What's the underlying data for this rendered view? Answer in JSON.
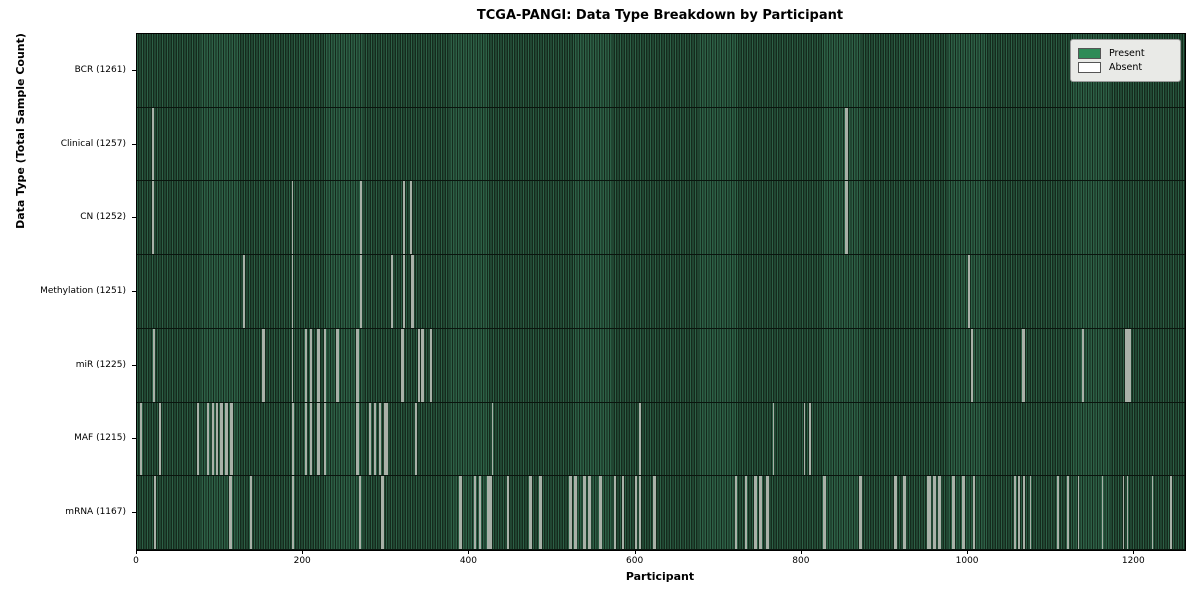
{
  "title": "TCGA-PANGI: Data Type Breakdown by Participant",
  "xlabel": "Participant",
  "ylabel": "Data Type (Total Sample Count)",
  "legend": {
    "present_label": "Present",
    "absent_label": "Absent",
    "present_color": "#2e8b57",
    "absent_color": "#ffffff"
  },
  "chart_data": {
    "type": "heatmap",
    "title": "TCGA-PANGI: Data Type Breakdown by Participant",
    "xlabel": "Participant",
    "ylabel": "Data Type (Total Sample Count)",
    "x_ticks": [
      0,
      200,
      400,
      600,
      800,
      1000,
      1200
    ],
    "x_max": 1261,
    "total_participants": 1261,
    "legend_position": "upper right",
    "colors": {
      "present": "#2e8b57",
      "absent": "#ffffff",
      "stripe_light": "#2d6046",
      "stripe_dark": "#152b1d",
      "absent_line": "#a9b1a8"
    },
    "rows": [
      {
        "label": "BCR (1261)",
        "name": "BCR",
        "total": 1261,
        "absent": []
      },
      {
        "label": "Clinical (1257)",
        "name": "Clinical",
        "total": 1257,
        "absent": [
          18,
          19,
          852,
          853
        ]
      },
      {
        "label": "CN (1252)",
        "name": "CN",
        "total": 1252,
        "absent": [
          18,
          19,
          186,
          268,
          269,
          320,
          329,
          852,
          853
        ]
      },
      {
        "label": "Methylation (1251)",
        "name": "Methylation",
        "total": 1251,
        "absent": [
          127,
          128,
          186,
          268,
          269,
          306,
          320,
          330,
          331,
          1000
        ]
      },
      {
        "label": "miR (1225)",
        "name": "miR",
        "total": 1225,
        "absent": [
          19,
          20,
          151,
          152,
          186,
          202,
          203,
          208,
          209,
          217,
          218,
          225,
          226,
          240,
          241,
          264,
          265,
          318,
          319,
          338,
          339,
          342,
          343,
          352,
          353,
          1003,
          1004,
          1065,
          1066,
          1137,
          1138,
          1189,
          1190,
          1192,
          1193,
          1194
        ]
      },
      {
        "label": "MAF (1215)",
        "name": "MAF",
        "total": 1215,
        "absent": [
          4,
          26,
          27,
          72,
          73,
          84,
          85,
          90,
          91,
          95,
          96,
          100,
          101,
          106,
          107,
          112,
          113,
          186,
          187,
          202,
          203,
          208,
          209,
          217,
          218,
          225,
          226,
          264,
          265,
          279,
          280,
          285,
          286,
          291,
          292,
          297,
          298,
          300,
          334,
          335,
          427,
          604,
          765,
          802,
          808,
          809
        ]
      },
      {
        "label": "mRNA (1167)",
        "name": "mRNA",
        "total": 1167,
        "absent": [
          20,
          21,
          111,
          112,
          136,
          137,
          186,
          187,
          267,
          268,
          294,
          295,
          388,
          389,
          405,
          406,
          411,
          412,
          421,
          422,
          424,
          425,
          445,
          446,
          472,
          473,
          484,
          485,
          520,
          521,
          526,
          527,
          537,
          538,
          543,
          544,
          556,
          557,
          574,
          575,
          583,
          584,
          599,
          600,
          604,
          605,
          621,
          622,
          719,
          720,
          731,
          732,
          743,
          744,
          749,
          750,
          757,
          758,
          826,
          827,
          869,
          870,
          911,
          912,
          922,
          923,
          950,
          951,
          952,
          953,
          958,
          959,
          964,
          965,
          981,
          982,
          993,
          994,
          1006,
          1007,
          1055,
          1056,
          1060,
          1061,
          1066,
          1074,
          1107,
          1119,
          1132,
          1161,
          1186,
          1191,
          1221,
          1243
        ]
      }
    ]
  }
}
